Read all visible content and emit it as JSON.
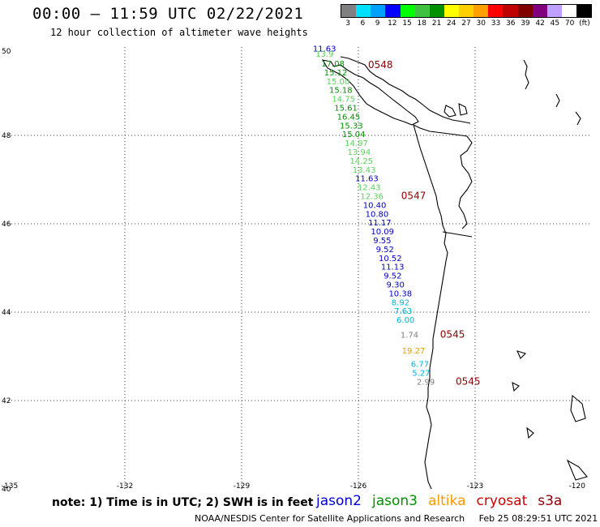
{
  "header": {
    "title": "00:00 – 11:59 UTC 02/22/2021",
    "subtitle": "12 hour collection of altimeter wave heights"
  },
  "scale": {
    "colors": [
      "#808080",
      "#00e0ff",
      "#00a0ff",
      "#0000ff",
      "#00ff00",
      "#40c040",
      "#009000",
      "#ffff00",
      "#ffd000",
      "#ffa000",
      "#ff0000",
      "#c00000",
      "#800000",
      "#800080",
      "#c0a0ff",
      "#ffffff",
      "#000000"
    ],
    "labels": [
      "3",
      "6",
      "9",
      "12",
      "15",
      "18",
      "21",
      "24",
      "27",
      "30",
      "33",
      "36",
      "39",
      "42",
      "45",
      "70",
      "(ft)"
    ]
  },
  "axes": {
    "lon_ticks": [
      "-135",
      "-132",
      "-129",
      "-126",
      "-123",
      "-120"
    ],
    "lat_ticks": [
      "50",
      "48",
      "46",
      "44",
      "42",
      "40"
    ]
  },
  "chart_data": {
    "type": "scatter",
    "xlim": [
      -135,
      -120
    ],
    "ylim": [
      40,
      50
    ],
    "points": [
      {
        "lon": -127.17,
        "lat": 49.9,
        "value": "11.63",
        "color": "#0000c0"
      },
      {
        "lon": -127.1,
        "lat": 49.78,
        "value": "13.9",
        "color": "#5ad25a"
      },
      {
        "lon": -126.95,
        "lat": 49.56,
        "value": "17.08",
        "color": "#009000"
      },
      {
        "lon": -126.88,
        "lat": 49.36,
        "value": "15.12",
        "color": "#009000"
      },
      {
        "lon": -126.82,
        "lat": 49.16,
        "value": "15.00",
        "color": "#5ad25a"
      },
      {
        "lon": -126.75,
        "lat": 48.96,
        "value": "15.18",
        "color": "#009000"
      },
      {
        "lon": -126.68,
        "lat": 48.76,
        "value": "14.75",
        "color": "#5ad25a"
      },
      {
        "lon": -126.62,
        "lat": 48.56,
        "value": "15.61",
        "color": "#009000"
      },
      {
        "lon": -126.55,
        "lat": 48.36,
        "value": "16.45",
        "color": "#009000"
      },
      {
        "lon": -126.48,
        "lat": 48.16,
        "value": "15.33",
        "color": "#009000"
      },
      {
        "lon": -126.42,
        "lat": 47.96,
        "value": "15.04",
        "color": "#009000"
      },
      {
        "lon": -126.35,
        "lat": 47.76,
        "value": "14.97",
        "color": "#5ad25a"
      },
      {
        "lon": -126.28,
        "lat": 47.56,
        "value": "13.94",
        "color": "#5ad25a"
      },
      {
        "lon": -126.22,
        "lat": 47.36,
        "value": "14.25",
        "color": "#5ad25a"
      },
      {
        "lon": -126.15,
        "lat": 47.16,
        "value": "13.43",
        "color": "#5ad25a"
      },
      {
        "lon": -126.08,
        "lat": 46.96,
        "value": "11.63",
        "color": "#0000c0"
      },
      {
        "lon": -126.02,
        "lat": 46.76,
        "value": "12.43",
        "color": "#5ad25a"
      },
      {
        "lon": -125.95,
        "lat": 46.56,
        "value": "12.36",
        "color": "#5ad25a"
      },
      {
        "lon": -125.88,
        "lat": 46.36,
        "value": "10.40",
        "color": "#0000c0"
      },
      {
        "lon": -125.82,
        "lat": 46.16,
        "value": "10.80",
        "color": "#0000c0"
      },
      {
        "lon": -125.75,
        "lat": 45.96,
        "value": "11.17",
        "color": "#0000c0"
      },
      {
        "lon": -125.68,
        "lat": 45.76,
        "value": "10.09",
        "color": "#0000c0"
      },
      {
        "lon": -125.62,
        "lat": 45.56,
        "value": "9.55",
        "color": "#0000c0"
      },
      {
        "lon": -125.55,
        "lat": 45.36,
        "value": "9.52",
        "color": "#0000c0"
      },
      {
        "lon": -125.48,
        "lat": 45.16,
        "value": "10.52",
        "color": "#0000c0"
      },
      {
        "lon": -125.42,
        "lat": 44.96,
        "value": "11.13",
        "color": "#0000c0"
      },
      {
        "lon": -125.35,
        "lat": 44.76,
        "value": "9.52",
        "color": "#0000c0"
      },
      {
        "lon": -125.28,
        "lat": 44.56,
        "value": "9.30",
        "color": "#0000c0"
      },
      {
        "lon": -125.22,
        "lat": 44.36,
        "value": "10.38",
        "color": "#0000c0"
      },
      {
        "lon": -125.15,
        "lat": 44.16,
        "value": "8.92",
        "color": "#00b4dc"
      },
      {
        "lon": -125.08,
        "lat": 43.96,
        "value": "7.63",
        "color": "#00b4dc"
      },
      {
        "lon": -125.02,
        "lat": 43.76,
        "value": "6.00",
        "color": "#00b4dc"
      },
      {
        "lon": -124.92,
        "lat": 43.42,
        "value": "1.74",
        "color": "#808080"
      },
      {
        "lon": -124.88,
        "lat": 43.06,
        "value": "19.27",
        "color": "#e6a000"
      },
      {
        "lon": -124.65,
        "lat": 42.76,
        "value": "6.77",
        "color": "#00b4dc"
      },
      {
        "lon": -124.62,
        "lat": 42.56,
        "value": "5.27",
        "color": "#00b4dc"
      },
      {
        "lon": -124.5,
        "lat": 42.36,
        "value": "2.99",
        "color": "#808080"
      }
    ],
    "passes": [
      {
        "lon": -125.75,
        "lat": 49.52,
        "label": "0548"
      },
      {
        "lon": -124.9,
        "lat": 46.56,
        "label": "0547"
      },
      {
        "lon": -123.9,
        "lat": 43.42,
        "label": "0545"
      },
      {
        "lon": -123.5,
        "lat": 42.36,
        "label": "0545"
      }
    ]
  },
  "note": "note: 1) Time is in UTC; 2) SWH is in feet",
  "satellites": [
    {
      "name": "jason2",
      "color": "#0000cc"
    },
    {
      "name": "jason3",
      "color": "#009000"
    },
    {
      "name": "altika",
      "color": "#ff9900"
    },
    {
      "name": "cryosat",
      "color": "#cc0000"
    },
    {
      "name": "s3a",
      "color": "#8b0000"
    }
  ],
  "footer": {
    "source": "NOAA/NESDIS Center for Satellite Applications and Research",
    "timestamp": "Feb 25 08:29:51 UTC 2021"
  }
}
